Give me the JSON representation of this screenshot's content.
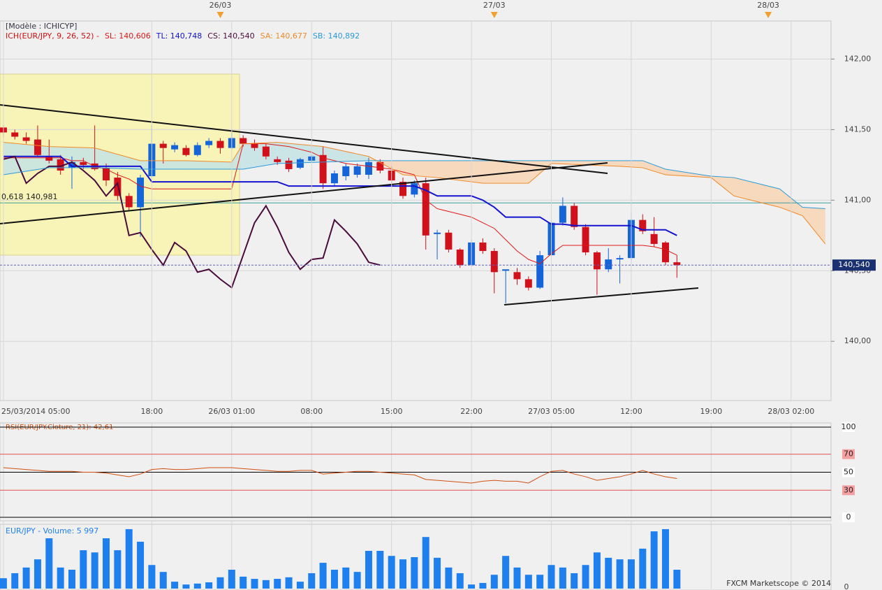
{
  "chart_data": [
    {
      "type": "candlestick",
      "title": "[Modèle : ICHICYP]",
      "indicator": "ICH(EUR/JPY, 9, 26, 52) -",
      "indicator_color": "#d01010",
      "x": [
        0,
        1,
        2,
        3,
        4,
        5,
        6,
        7,
        8,
        9,
        10,
        11,
        12,
        13,
        14,
        15,
        16,
        17,
        18,
        19,
        20,
        21,
        22,
        23,
        24,
        25,
        26,
        27,
        28,
        29,
        30,
        31,
        32,
        33,
        34,
        35,
        36,
        37,
        38,
        39,
        40,
        41,
        42,
        43,
        44,
        45,
        46,
        47,
        48,
        49,
        50,
        51,
        52,
        53,
        54,
        55,
        56,
        57,
        58,
        59
      ],
      "open": [
        141.515,
        141.48,
        141.445,
        141.43,
        141.31,
        141.29,
        141.23,
        141.27,
        141.26,
        141.23,
        141.16,
        141.03,
        140.95,
        141.17,
        141.4,
        141.36,
        141.37,
        141.32,
        141.39,
        141.42,
        141.37,
        141.44,
        141.4,
        141.38,
        141.29,
        141.28,
        141.23,
        141.28,
        141.32,
        141.12,
        141.17,
        141.18,
        141.18,
        141.27,
        141.21,
        141.13,
        141.04,
        141.12,
        140.76,
        140.77,
        140.65,
        140.54,
        140.7,
        140.64,
        140.5,
        140.49,
        140.44,
        140.38,
        140.61,
        140.84,
        140.96,
        140.81,
        140.63,
        140.51,
        140.58,
        140.59,
        140.86,
        140.76,
        140.7,
        140.56
      ],
      "high": [
        141.53,
        141.5,
        141.48,
        141.53,
        141.43,
        141.32,
        141.31,
        141.3,
        141.53,
        141.26,
        141.2,
        141.05,
        141.18,
        141.53,
        141.42,
        141.41,
        141.39,
        141.41,
        141.44,
        141.44,
        141.48,
        141.46,
        141.43,
        141.4,
        141.31,
        141.3,
        141.3,
        141.32,
        141.38,
        141.21,
        141.26,
        141.26,
        141.3,
        141.29,
        141.24,
        141.16,
        141.14,
        141.16,
        140.79,
        140.79,
        140.66,
        140.72,
        140.73,
        140.66,
        140.51,
        140.52,
        140.46,
        140.64,
        140.87,
        141.02,
        140.98,
        140.83,
        140.64,
        140.66,
        140.61,
        140.91,
        140.9,
        140.88,
        140.71,
        140.61
      ],
      "low": [
        141.45,
        141.43,
        141.4,
        141.31,
        141.26,
        141.18,
        141.08,
        141.22,
        141.21,
        141.1,
        141.0,
        140.93,
        140.74,
        141.16,
        141.26,
        141.34,
        141.31,
        141.31,
        141.37,
        141.33,
        141.36,
        141.38,
        141.35,
        141.29,
        141.25,
        141.2,
        141.22,
        141.27,
        141.08,
        141.1,
        141.14,
        141.16,
        141.15,
        141.19,
        141.12,
        141.01,
        141.02,
        140.65,
        140.58,
        140.63,
        140.52,
        140.53,
        140.62,
        140.34,
        140.27,
        140.4,
        140.36,
        140.37,
        140.6,
        140.82,
        140.79,
        140.61,
        140.33,
        140.49,
        140.41,
        140.57,
        140.76,
        140.67,
        140.54,
        140.45
      ],
      "close": [
        141.48,
        141.45,
        141.42,
        141.32,
        141.28,
        141.21,
        141.27,
        141.25,
        141.22,
        141.14,
        141.03,
        140.95,
        141.16,
        141.4,
        141.37,
        141.39,
        141.32,
        141.39,
        141.42,
        141.37,
        141.44,
        141.4,
        141.37,
        141.31,
        141.27,
        141.22,
        141.29,
        141.31,
        141.12,
        141.19,
        141.24,
        141.24,
        141.27,
        141.21,
        141.14,
        141.03,
        141.12,
        140.75,
        140.77,
        140.65,
        140.54,
        140.7,
        140.64,
        140.49,
        140.51,
        140.44,
        140.38,
        140.61,
        140.84,
        140.96,
        140.81,
        140.63,
        140.51,
        140.58,
        140.59,
        140.86,
        140.78,
        140.69,
        140.56,
        140.54
      ],
      "up_color": "#1565d8",
      "down_color": "#d0101a",
      "series": [
        {
          "name": "SL: 140,606",
          "color": "#e01818",
          "values": [
            141.3,
            141.3,
            141.3,
            141.3,
            141.3,
            141.3,
            141.28,
            141.28,
            141.24,
            141.22,
            141.18,
            141.15,
            141.1,
            141.08,
            141.08,
            141.08,
            141.08,
            141.08,
            141.08,
            141.08,
            141.08,
            141.4,
            141.4,
            141.4,
            141.39,
            141.38,
            141.36,
            141.34,
            141.3,
            141.28,
            141.26,
            141.25,
            141.24,
            141.23,
            141.22,
            141.2,
            141.18,
            141.0,
            140.94,
            140.92,
            140.9,
            140.88,
            140.84,
            140.8,
            140.72,
            140.64,
            140.58,
            140.55,
            140.62,
            140.68,
            140.68,
            140.68,
            140.68,
            140.68,
            140.68,
            140.68,
            140.68,
            140.67,
            140.65,
            140.61
          ]
        },
        {
          "name": "TL: 140,748",
          "color": "#1414d0",
          "values": [
            141.31,
            141.31,
            141.31,
            141.31,
            141.31,
            141.31,
            141.24,
            141.24,
            141.24,
            141.24,
            141.24,
            141.24,
            141.24,
            141.13,
            141.13,
            141.13,
            141.13,
            141.13,
            141.13,
            141.13,
            141.13,
            141.13,
            141.13,
            141.13,
            141.13,
            141.1,
            141.1,
            141.1,
            141.1,
            141.1,
            141.1,
            141.1,
            141.1,
            141.1,
            141.1,
            141.1,
            141.1,
            141.07,
            141.03,
            141.03,
            141.03,
            141.03,
            141.0,
            140.95,
            140.88,
            140.88,
            140.88,
            140.88,
            140.83,
            140.83,
            140.82,
            140.82,
            140.82,
            140.82,
            140.82,
            140.82,
            140.79,
            140.79,
            140.79,
            140.75
          ]
        },
        {
          "name": "CS: 140,540",
          "color": "#4a0a3a",
          "x": [
            0,
            1,
            2,
            3,
            4,
            5,
            6,
            7,
            8,
            9,
            10,
            11,
            12,
            13,
            14,
            15,
            16,
            17,
            18,
            19,
            20,
            21,
            22,
            23,
            24,
            25,
            26,
            27,
            28,
            29,
            30,
            31,
            32,
            33
          ],
          "values": [
            141.29,
            141.31,
            141.12,
            141.19,
            141.24,
            141.24,
            141.27,
            141.21,
            141.14,
            141.03,
            141.12,
            140.75,
            140.77,
            140.65,
            140.54,
            140.7,
            140.64,
            140.49,
            140.51,
            140.44,
            140.38,
            140.61,
            140.84,
            140.96,
            140.81,
            140.63,
            140.51,
            140.58,
            140.59,
            140.86,
            140.78,
            140.69,
            140.56,
            140.54
          ]
        },
        {
          "name": "SA: 140,677",
          "color": "#f08a28",
          "x": [
            0,
            4,
            8,
            12,
            16,
            20,
            21,
            24,
            28,
            32,
            35,
            38,
            42,
            46,
            48,
            54,
            56,
            58,
            62,
            64,
            66,
            68,
            70,
            72
          ],
          "values": [
            141.41,
            141.38,
            141.37,
            141.28,
            141.28,
            141.27,
            141.4,
            141.41,
            141.38,
            141.31,
            141.18,
            141.16,
            141.12,
            141.12,
            141.26,
            141.24,
            141.23,
            141.18,
            141.16,
            141.03,
            140.99,
            140.95,
            140.89,
            140.69
          ]
        },
        {
          "name": "SB: 140,892",
          "color": "#2a9ad8",
          "x": [
            0,
            4,
            8,
            12,
            16,
            20,
            21,
            24,
            28,
            32,
            35,
            38,
            42,
            46,
            48,
            54,
            56,
            58,
            62,
            64,
            66,
            68,
            70,
            72
          ],
          "values": [
            141.18,
            141.23,
            141.23,
            141.22,
            141.22,
            141.22,
            141.22,
            141.26,
            141.27,
            141.28,
            141.28,
            141.28,
            141.28,
            141.28,
            141.28,
            141.28,
            141.28,
            141.22,
            141.17,
            141.16,
            141.12,
            141.08,
            140.95,
            140.94
          ]
        }
      ],
      "cloud_colors": [
        "#c4e3e4",
        "#f8d5b5"
      ],
      "xlim": [
        -0.3,
        72.5
      ],
      "xticks": [
        {
          "value": 0,
          "label": "25/03/2014 05:00"
        },
        {
          "value": 13,
          "label": "18:00"
        },
        {
          "value": 20,
          "label": "26/03 01:00"
        },
        {
          "value": 27,
          "label": "08:00"
        },
        {
          "value": 34,
          "label": "15:00"
        },
        {
          "value": 41,
          "label": "22:00"
        },
        {
          "value": 48,
          "label": "27/03 05:00"
        },
        {
          "value": 55,
          "label": "12:00"
        },
        {
          "value": 62,
          "label": "19:00"
        },
        {
          "value": 69,
          "label": "28/03 02:00"
        }
      ],
      "day_markers": [
        {
          "value": 19,
          "label": "26/03"
        },
        {
          "value": 43,
          "label": "27/03"
        },
        {
          "value": 67,
          "label": "28/03"
        }
      ],
      "ylim": [
        139.58,
        142.27
      ],
      "yticks": [
        {
          "value": 140,
          "label": "140,00"
        },
        {
          "value": 140.5,
          "label": "140,50"
        },
        {
          "value": 141,
          "label": "141,00"
        },
        {
          "value": 141.5,
          "label": "141,50"
        },
        {
          "value": 142,
          "label": "142,00"
        }
      ],
      "grid": true,
      "last_price": {
        "value": 140.54,
        "label": "140,540"
      },
      "fib_line": {
        "value": 140.981,
        "label": "0,618 140,981"
      },
      "fib_color": "#3aa0a0"
    },
    {
      "type": "line",
      "title": "RSI(EUR/JPY.Cloture, 21): 42,61",
      "color": "#d05010",
      "values": [
        55,
        54,
        53,
        52,
        51,
        51,
        51,
        50,
        50,
        49,
        47,
        45,
        48,
        53,
        54,
        53,
        53,
        54,
        55,
        55,
        55,
        54,
        53,
        52,
        51,
        51,
        52,
        52,
        48,
        49,
        50,
        51,
        51,
        50,
        49,
        48,
        47,
        42,
        41,
        40,
        39,
        38,
        40,
        41,
        40,
        40,
        38,
        45,
        51,
        52,
        48,
        45,
        41,
        43,
        45,
        48,
        52,
        48,
        45,
        43
      ],
      "ylim": [
        0,
        100
      ],
      "yticks": [
        100,
        70,
        50,
        30,
        0
      ],
      "band_color": "#e05050"
    },
    {
      "type": "bar",
      "title": "EUR/JPY - Volume: 5 997",
      "color": "#1e80ee",
      "values": [
        3300,
        4900,
        6700,
        9300,
        16000,
        6700,
        6000,
        12200,
        11500,
        16000,
        12200,
        18900,
        14900,
        7500,
        5300,
        2200,
        1300,
        1600,
        2000,
        3600,
        6000,
        3800,
        3100,
        2700,
        3100,
        3600,
        2200,
        4900,
        8200,
        6000,
        6700,
        5300,
        12000,
        12000,
        10400,
        9300,
        10000,
        16400,
        9800,
        6700,
        4900,
        1300,
        1800,
        4400,
        10400,
        6700,
        4400,
        4400,
        7500,
        6700,
        4900,
        7500,
        11500,
        9800,
        9300,
        9300,
        12700,
        18200,
        18900,
        5997
      ],
      "ylim": [
        0,
        20000
      ],
      "yticks": [
        0
      ]
    }
  ],
  "credit": "FXCM Marketscope © 2014"
}
